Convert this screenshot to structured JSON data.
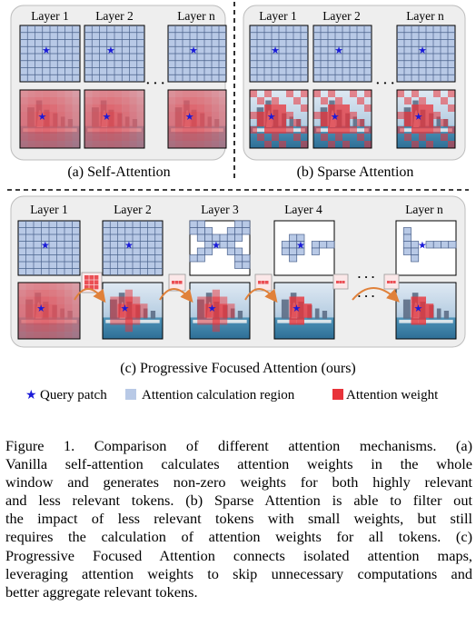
{
  "panel_a": {
    "layer_labels": [
      "Layer 1",
      "Layer 2",
      "Layer n"
    ],
    "caption": "(a) Self-Attention"
  },
  "panel_b": {
    "layer_labels": [
      "Layer 1",
      "Layer 2",
      "Layer n"
    ],
    "caption": "(b) Sparse Attention"
  },
  "panel_c": {
    "layer_labels": [
      "Layer 1",
      "Layer 2",
      "Layer 3",
      "Layer 4",
      "Layer n"
    ],
    "caption": "(c) Progressive Focused Attention (ours)"
  },
  "ellipsis": "· · ·",
  "legend": {
    "query_patch": "Query patch",
    "calc_region": "Attention calculation region",
    "attn_weight": "Attention weight"
  },
  "colors": {
    "grid_fill": "#b8c9e6",
    "grid_line": "#49608a",
    "attn_red": "#e8333a",
    "star": "#1a1ad8",
    "panel_bg": "#eeeeee",
    "arrow": "#e0813a"
  },
  "icons": {
    "query": "star-icon",
    "region": "square-icon",
    "weight": "square-icon"
  },
  "caption_lines": [
    "Figure 1.  Comparison of different attention mechanisms.  (a)",
    "Vanilla self-attention calculates attention weights in the whole",
    "window and generates non-zero weights for both highly relevant",
    "and less relevant tokens. (b) Sparse Attention is able to filter out",
    "the impact of less relevant tokens with small weights, but still",
    "requires the calculation of attention weights for all tokens.  (c)",
    "Progressive Focused Attention connects isolated attention maps,",
    "leveraging attention weights to skip unnecessary computations and",
    "better aggregate relevant tokens."
  ]
}
